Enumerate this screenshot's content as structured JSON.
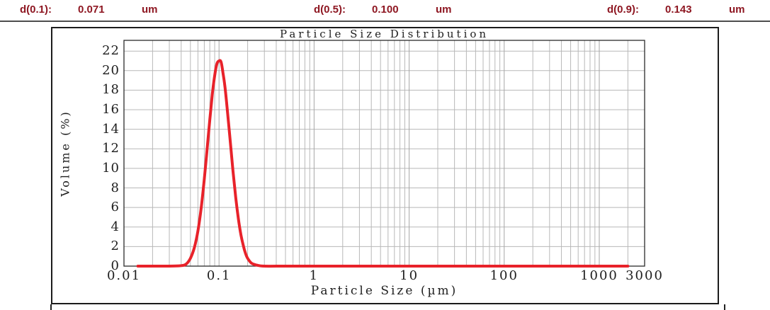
{
  "header": {
    "stats": [
      {
        "label": "d(0.1):",
        "value": "0.071",
        "unit": "um"
      },
      {
        "label": "d(0.5):",
        "value": "0.100",
        "unit": "um"
      },
      {
        "label": "d(0.9):",
        "value": "0.143",
        "unit": "um"
      }
    ]
  },
  "colors": {
    "header_text": "#8e1722",
    "divider": "#4d4d4d",
    "frame_border": "#1c1c1c",
    "plot_border": "#2b2b2b",
    "grid_major": "#a6a6a6",
    "grid_minor": "#b8b8b8",
    "curve": "#e8222a",
    "text": "#1f1f1f"
  },
  "chart_data": {
    "type": "line",
    "title": "Particle Size Distribution",
    "xlabel": "Particle Size (µm)",
    "ylabel": "Volume (%)",
    "x_scale": "log",
    "xlim": [
      0.01,
      3000
    ],
    "ylim": [
      0,
      23.1
    ],
    "y_ticks": [
      0,
      2,
      4,
      6,
      8,
      10,
      12,
      14,
      16,
      18,
      20,
      22
    ],
    "x_ticks": [
      0.01,
      0.1,
      1,
      10,
      100,
      1000,
      3000
    ],
    "x_tick_labels": [
      "0.01",
      "0.1",
      "1",
      "10",
      "100",
      "1000",
      "3000"
    ],
    "grid": true,
    "legend": "none",
    "series": [
      {
        "name": "Volume (%)",
        "color": "#e8222a",
        "stroke_width": 4,
        "x": [
          0.014,
          0.02,
          0.03,
          0.04,
          0.045,
          0.05,
          0.055,
          0.06,
          0.065,
          0.07,
          0.075,
          0.08,
          0.085,
          0.09,
          0.095,
          0.1,
          0.105,
          0.11,
          0.115,
          0.12,
          0.13,
          0.14,
          0.15,
          0.16,
          0.17,
          0.18,
          0.19,
          0.2,
          0.22,
          0.25,
          0.3,
          0.5,
          1,
          5,
          10,
          50,
          100,
          500,
          1000,
          2000
        ],
        "y": [
          0,
          0,
          0,
          0.05,
          0.2,
          0.8,
          1.9,
          3.6,
          6.0,
          8.9,
          12.0,
          15.0,
          17.6,
          19.5,
          20.7,
          21.0,
          20.9,
          19.8,
          18.5,
          16.8,
          13.2,
          9.8,
          7.0,
          4.8,
          3.2,
          2.1,
          1.3,
          0.8,
          0.3,
          0.1,
          0,
          0,
          0,
          0,
          0,
          0,
          0,
          0,
          0,
          0
        ]
      }
    ]
  }
}
